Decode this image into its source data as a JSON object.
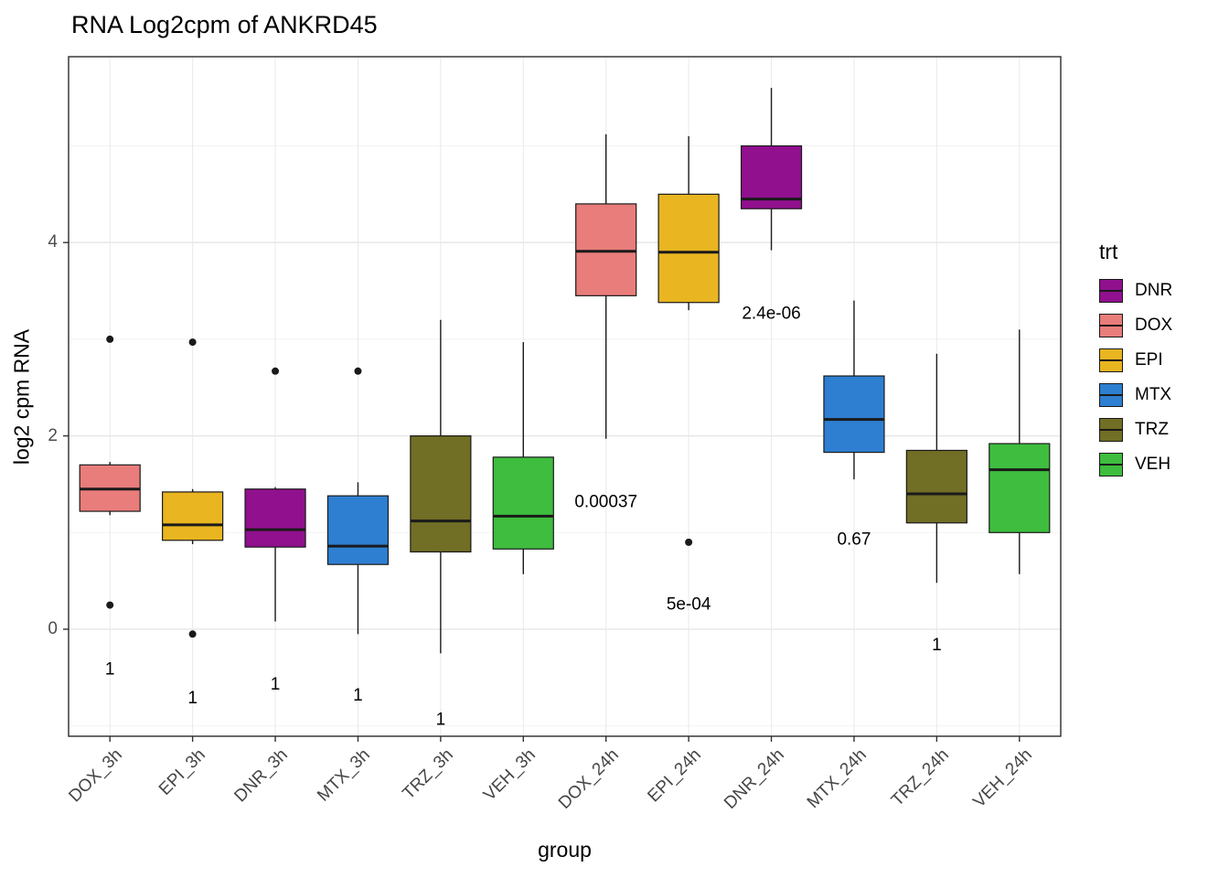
{
  "title": "RNA Log2cpm of ANKRD45",
  "axes": {
    "x_label": "group",
    "y_label": "log2 cpm RNA",
    "y_ticks": [
      0,
      2,
      4
    ]
  },
  "legend": {
    "title": "trt",
    "items": [
      {
        "label": "DNR",
        "color": "#90108E"
      },
      {
        "label": "DOX",
        "color": "#E87D7B"
      },
      {
        "label": "EPI",
        "color": "#E9B520"
      },
      {
        "label": "MTX",
        "color": "#2E7FD1"
      },
      {
        "label": "TRZ",
        "color": "#716E25"
      },
      {
        "label": "VEH",
        "color": "#3EBD3E"
      }
    ]
  },
  "chart_data": {
    "type": "boxplot",
    "title": "RNA Log2cpm of ANKRD45",
    "xlabel": "group",
    "ylabel": "log2 cpm RNA",
    "ylim": [
      -1.1,
      5.9
    ],
    "grid": true,
    "legend_position": "right",
    "y_major_gridlines": [
      0,
      2,
      4
    ],
    "y_minor_gridlines": [
      -1,
      1,
      3,
      5
    ],
    "categories": [
      "DOX_3h",
      "EPI_3h",
      "DNR_3h",
      "MTX_3h",
      "TRZ_3h",
      "VEH_3h",
      "DOX_24h",
      "EPI_24h",
      "DNR_24h",
      "MTX_24h",
      "TRZ_24h",
      "VEH_24h"
    ],
    "boxes": [
      {
        "group": "DOX_3h",
        "trt": "DOX",
        "whisker_low": 1.18,
        "q1": 1.22,
        "median": 1.45,
        "q3": 1.7,
        "whisker_high": 1.73,
        "outliers": [
          3.0,
          0.25
        ],
        "p_label": "1",
        "p_label_y": -0.41
      },
      {
        "group": "EPI_3h",
        "trt": "EPI",
        "whisker_low": 0.88,
        "q1": 0.92,
        "median": 1.08,
        "q3": 1.42,
        "whisker_high": 1.45,
        "outliers": [
          2.97,
          -0.05
        ],
        "p_label": "1",
        "p_label_y": -0.71
      },
      {
        "group": "DNR_3h",
        "trt": "DNR",
        "whisker_low": 0.08,
        "q1": 0.85,
        "median": 1.03,
        "q3": 1.45,
        "whisker_high": 1.47,
        "outliers": [
          2.67
        ],
        "p_label": "1",
        "p_label_y": -0.57
      },
      {
        "group": "MTX_3h",
        "trt": "MTX",
        "whisker_low": -0.05,
        "q1": 0.67,
        "median": 0.86,
        "q3": 1.38,
        "whisker_high": 1.52,
        "outliers": [
          2.67
        ],
        "p_label": "1",
        "p_label_y": -0.68
      },
      {
        "group": "TRZ_3h",
        "trt": "TRZ",
        "whisker_low": -0.25,
        "q1": 0.8,
        "median": 1.12,
        "q3": 2.0,
        "whisker_high": 3.2,
        "outliers": [],
        "p_label": "1",
        "p_label_y": -0.93
      },
      {
        "group": "VEH_3h",
        "trt": "VEH",
        "whisker_low": 0.57,
        "q1": 0.83,
        "median": 1.17,
        "q3": 1.78,
        "whisker_high": 2.97,
        "outliers": [],
        "p_label": "",
        "p_label_y": null
      },
      {
        "group": "DOX_24h",
        "trt": "DOX",
        "whisker_low": 1.97,
        "q1": 3.45,
        "median": 3.91,
        "q3": 4.4,
        "whisker_high": 5.12,
        "outliers": [],
        "p_label": "0.00037",
        "p_label_y": 1.32
      },
      {
        "group": "EPI_24h",
        "trt": "EPI",
        "whisker_low": 3.3,
        "q1": 3.38,
        "median": 3.9,
        "q3": 4.5,
        "whisker_high": 5.1,
        "outliers": [
          0.9
        ],
        "p_label": "5e-04",
        "p_label_y": 0.26
      },
      {
        "group": "DNR_24h",
        "trt": "DNR",
        "whisker_low": 3.92,
        "q1": 4.35,
        "median": 4.45,
        "q3": 5.0,
        "whisker_high": 5.6,
        "outliers": [],
        "p_label": "2.4e-06",
        "p_label_y": 3.27
      },
      {
        "group": "MTX_24h",
        "trt": "MTX",
        "whisker_low": 1.55,
        "q1": 1.83,
        "median": 2.17,
        "q3": 2.62,
        "whisker_high": 3.4,
        "outliers": [],
        "p_label": "0.67",
        "p_label_y": 0.93
      },
      {
        "group": "TRZ_24h",
        "trt": "TRZ",
        "whisker_low": 0.48,
        "q1": 1.1,
        "median": 1.4,
        "q3": 1.85,
        "whisker_high": 2.85,
        "outliers": [],
        "p_label": "1",
        "p_label_y": -0.16
      },
      {
        "group": "VEH_24h",
        "trt": "VEH",
        "whisker_low": 0.57,
        "q1": 1.0,
        "median": 1.65,
        "q3": 1.92,
        "whisker_high": 3.1,
        "outliers": [],
        "p_label": "",
        "p_label_y": null
      }
    ]
  }
}
